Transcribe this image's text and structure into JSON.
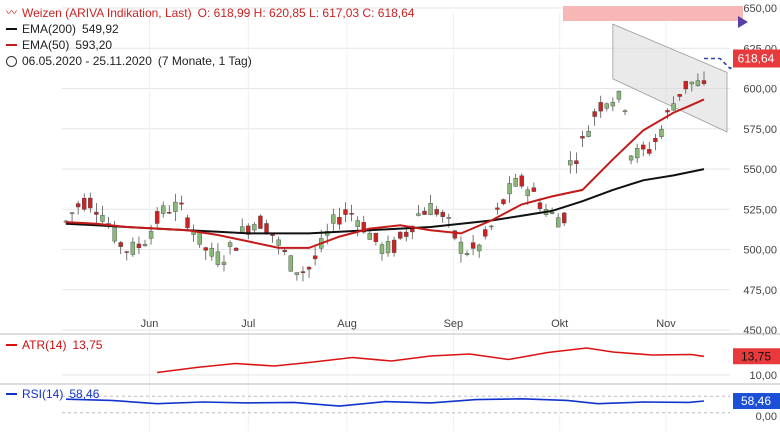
{
  "legend": {
    "title": "Weizen (ARIVA Indikation, Last)",
    "ohlc": "O: 618,99  H: 620,85  L: 617,03  C: 618,64",
    "ema200_label": "EMA(200)",
    "ema200_value": "549,92",
    "ema50_label": "EMA(50)",
    "ema50_value": "593,20",
    "range": "06.05.2020 - 25.11.2020",
    "period": "(7 Monate, 1 Tag)"
  },
  "colors": {
    "up": "#8ab87a",
    "down": "#cc2222",
    "ema200": "#111111",
    "ema50": "#c41a1a",
    "atr": "#dd1111",
    "rsi": "#1133cc",
    "grid": "#e6e6e6",
    "price_box": "#e8393c",
    "rsi_box": "#1a4fd6",
    "target_zone": "#f7b7b7",
    "channel": "#d8d8d8"
  },
  "chart_data": [
    {
      "type": "candlestick",
      "ylim": [
        450,
        650
      ],
      "y_ticks": [
        "650,00",
        "625,00",
        "600,00",
        "575,00",
        "550,00",
        "525,00",
        "500,00",
        "475,00",
        "450,00"
      ],
      "x_ticks": [
        "Jun",
        "Jul",
        "Aug",
        "Sep",
        "Okt",
        "Nov"
      ],
      "last_price": "618,64",
      "series": [
        {
          "name": "EMA(200)",
          "value": "549,92",
          "points": [
            [
              0,
              516
            ],
            [
              20,
              515
            ],
            [
              40,
              514
            ],
            [
              60,
              513
            ],
            [
              80,
              512
            ],
            [
              100,
              511
            ],
            [
              120,
              510
            ],
            [
              140,
              510
            ],
            [
              160,
              510
            ],
            [
              180,
              511
            ],
            [
              200,
              512
            ],
            [
              220,
              513
            ],
            [
              240,
              514
            ],
            [
              260,
              516
            ],
            [
              280,
              518
            ],
            [
              300,
              521
            ],
            [
              320,
              524
            ],
            [
              340,
              530
            ],
            [
              360,
              537
            ],
            [
              380,
              543
            ],
            [
              400,
              546
            ],
            [
              420,
              549.92
            ]
          ]
        },
        {
          "name": "EMA(50)",
          "value": "593,20",
          "points": [
            [
              0,
              517
            ],
            [
              20,
              516
            ],
            [
              40,
              514
            ],
            [
              60,
              513
            ],
            [
              80,
              512
            ],
            [
              100,
              509
            ],
            [
              120,
              505
            ],
            [
              140,
              501
            ],
            [
              160,
              501
            ],
            [
              180,
              508
            ],
            [
              200,
              513
            ],
            [
              220,
              515
            ],
            [
              240,
              512
            ],
            [
              260,
              510
            ],
            [
              280,
              518
            ],
            [
              300,
              528
            ],
            [
              320,
              533
            ],
            [
              340,
              537
            ],
            [
              360,
              556
            ],
            [
              380,
              574
            ],
            [
              400,
              585
            ],
            [
              410,
              589
            ],
            [
              420,
              593.2
            ]
          ]
        }
      ]
    },
    {
      "type": "line",
      "name": "ATR(14)",
      "value": "13,75",
      "points": [
        [
          0,
          10.5
        ],
        [
          30,
          11.5
        ],
        [
          60,
          12.3
        ],
        [
          90,
          11.8
        ],
        [
          120,
          12.6
        ],
        [
          150,
          13.5
        ],
        [
          180,
          12.8
        ],
        [
          210,
          13.8
        ],
        [
          240,
          14.2
        ],
        [
          270,
          13.1
        ],
        [
          300,
          14.5
        ],
        [
          330,
          15.4
        ],
        [
          350,
          14.6
        ],
        [
          380,
          14.0
        ],
        [
          410,
          14.1
        ],
        [
          420,
          13.75
        ]
      ]
    },
    {
      "type": "line",
      "name": "RSI(14)",
      "value": "58,46",
      "points": [
        [
          0,
          63
        ],
        [
          30,
          60
        ],
        [
          60,
          52
        ],
        [
          90,
          56
        ],
        [
          120,
          54
        ],
        [
          150,
          55
        ],
        [
          180,
          46
        ],
        [
          210,
          57
        ],
        [
          240,
          54
        ],
        [
          270,
          62
        ],
        [
          300,
          64
        ],
        [
          330,
          60
        ],
        [
          350,
          52
        ],
        [
          380,
          56
        ],
        [
          410,
          55
        ],
        [
          420,
          58.46
        ]
      ]
    }
  ]
}
